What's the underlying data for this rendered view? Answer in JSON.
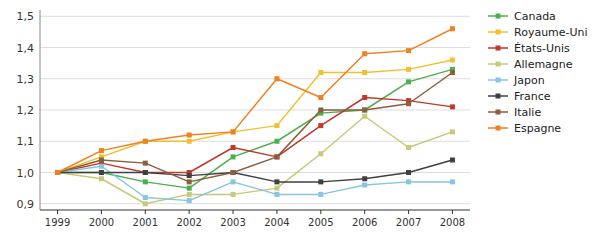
{
  "chart_data": {
    "type": "line",
    "x": [
      1999,
      2000,
      2001,
      2002,
      2003,
      2004,
      2005,
      2006,
      2007,
      2008
    ],
    "xlim": [
      1998.6,
      2008.4
    ],
    "xticks": [
      1999,
      2000,
      2001,
      2002,
      2003,
      2004,
      2005,
      2006,
      2007,
      2008
    ],
    "ylim": [
      0.88,
      1.52
    ],
    "yticks": [
      {
        "value": 0.9,
        "label": "0,9"
      },
      {
        "value": 1.0,
        "label": "1,0"
      },
      {
        "value": 1.1,
        "label": "1,1"
      },
      {
        "value": 1.2,
        "label": "1,2"
      },
      {
        "value": 1.3,
        "label": "1,3"
      },
      {
        "value": 1.4,
        "label": "1,4"
      },
      {
        "value": 1.5,
        "label": "1,5"
      }
    ],
    "grid": true,
    "legend": "right",
    "marker": "square",
    "series": [
      {
        "name": "Canada",
        "color": "#4caf50",
        "values": [
          1.0,
          1.0,
          0.97,
          0.95,
          1.05,
          1.1,
          1.19,
          1.2,
          1.29,
          1.33
        ]
      },
      {
        "name": "Royaume-Uni",
        "color": "#f0c030",
        "values": [
          1.0,
          1.05,
          1.1,
          1.1,
          1.13,
          1.15,
          1.32,
          1.32,
          1.33,
          1.36
        ]
      },
      {
        "name": "États-Unis",
        "color": "#c0392b",
        "values": [
          1.0,
          1.03,
          1.0,
          1.0,
          1.08,
          1.05,
          1.15,
          1.24,
          1.23,
          1.21
        ]
      },
      {
        "name": "Allemagne",
        "color": "#c8c87a",
        "values": [
          1.0,
          0.98,
          0.9,
          0.93,
          0.93,
          0.95,
          1.06,
          1.18,
          1.08,
          1.13
        ]
      },
      {
        "name": "Japon",
        "color": "#89c4e1",
        "values": [
          1.0,
          1.02,
          0.92,
          0.91,
          0.97,
          0.93,
          0.93,
          0.96,
          0.97,
          0.97
        ]
      },
      {
        "name": "France",
        "color": "#404040",
        "values": [
          1.0,
          1.0,
          1.0,
          0.99,
          1.0,
          0.97,
          0.97,
          0.98,
          1.0,
          1.04
        ]
      },
      {
        "name": "Italie",
        "color": "#8B5E3C",
        "values": [
          1.0,
          1.04,
          1.03,
          0.97,
          1.0,
          1.05,
          1.2,
          1.2,
          1.22,
          1.32
        ]
      },
      {
        "name": "Espagne",
        "color": "#f08020",
        "values": [
          1.0,
          1.07,
          1.1,
          1.12,
          1.13,
          1.3,
          1.24,
          1.38,
          1.39,
          1.46
        ]
      }
    ]
  }
}
